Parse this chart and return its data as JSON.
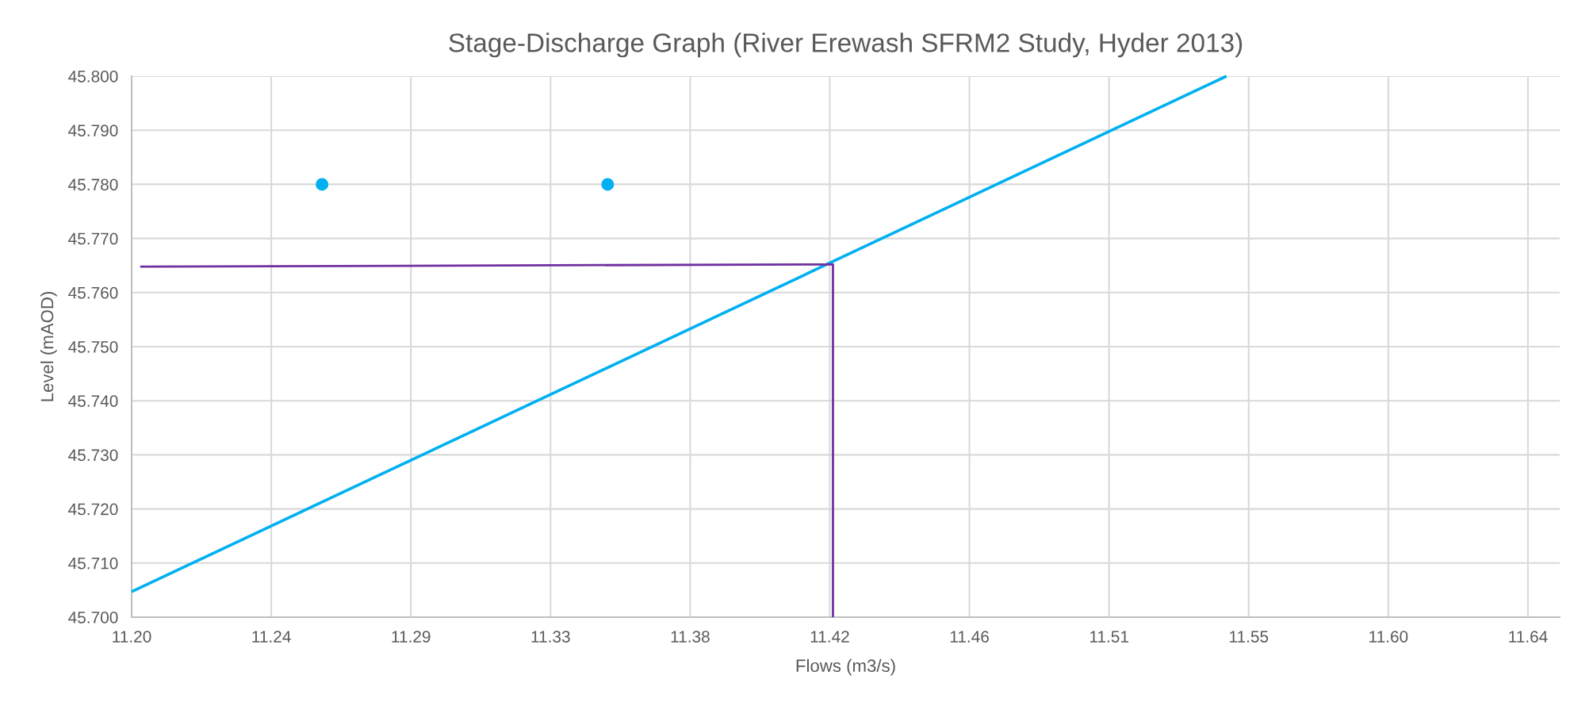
{
  "chart_data": {
    "type": "line",
    "title": "Stage-Discharge Graph (River Erewash SFRM2 Study, Hyder 2013)",
    "xlabel": "Flows (m3/s)",
    "ylabel": "Level (mAOD)",
    "series": [
      {
        "color": "#00b0f0",
        "x": [
          11.2,
          11.545
        ],
        "values": [
          45.7047,
          45.8
        ]
      },
      {
        "color": "#7030a0",
        "x": [
          11.2027,
          11.421,
          11.421
        ],
        "values": [
          45.7648,
          45.7652,
          45.7
        ]
      },
      {
        "type": "scatter",
        "color": "#00b0f0",
        "x": [
          11.26,
          11.35
        ],
        "values": [
          45.78,
          45.78
        ],
        "marker": "circle"
      }
    ],
    "xlim": [
      11.2,
      11.65
    ],
    "xticks": [
      {
        "value": 11.2,
        "label": "11.20"
      },
      {
        "value": 11.244,
        "label": "11.24"
      },
      {
        "value": 11.288,
        "label": "11.29"
      },
      {
        "value": 11.332,
        "label": "11.33"
      },
      {
        "value": 11.376,
        "label": "11.38"
      },
      {
        "value": 11.42,
        "label": "11.42"
      },
      {
        "value": 11.464,
        "label": "11.46"
      },
      {
        "value": 11.508,
        "label": "11.51"
      },
      {
        "value": 11.552,
        "label": "11.55"
      },
      {
        "value": 11.596,
        "label": "11.60"
      },
      {
        "value": 11.64,
        "label": "11.64"
      }
    ],
    "ylim": [
      45.7,
      45.8
    ],
    "yticks": [
      {
        "value": 45.7,
        "label": "45.700"
      },
      {
        "value": 45.71,
        "label": "45.710"
      },
      {
        "value": 45.72,
        "label": "45.720"
      },
      {
        "value": 45.73,
        "label": "45.730"
      },
      {
        "value": 45.74,
        "label": "45.740"
      },
      {
        "value": 45.75,
        "label": "45.750"
      },
      {
        "value": 45.76,
        "label": "45.760"
      },
      {
        "value": 45.77,
        "label": "45.770"
      },
      {
        "value": 45.78,
        "label": "45.780"
      },
      {
        "value": 45.79,
        "label": "45.790"
      },
      {
        "value": 45.8,
        "label": "45.800"
      }
    ],
    "grid": true
  }
}
